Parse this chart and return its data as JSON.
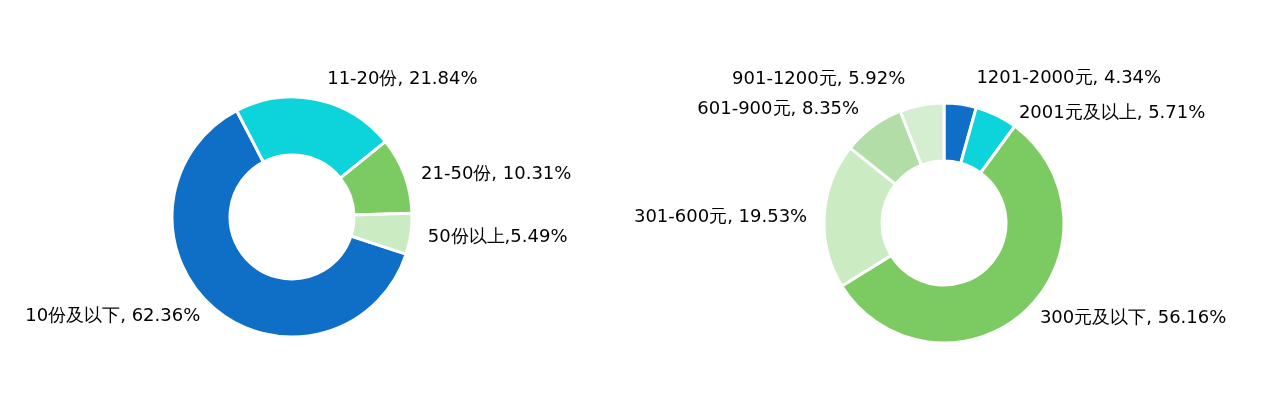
{
  "chart_data": [
    {
      "type": "donut",
      "categories": [
        "10份及以下",
        "11-20份",
        "21-50份",
        "50份以上"
      ],
      "values": [
        62.36,
        21.84,
        10.31,
        5.49
      ],
      "colors": [
        "#0f6fc6",
        "#0dd3db",
        "#7bcb62",
        "#cbebc3"
      ],
      "value_labels": [
        "62.36%",
        "21.84%",
        "10.31%",
        "5.49%"
      ]
    },
    {
      "type": "donut",
      "categories": [
        "1201-2000元",
        "2001元及以上",
        "300元及以下",
        "301-600元",
        "601-900元",
        "901-1200元"
      ],
      "values": [
        4.34,
        5.71,
        56.16,
        19.53,
        8.35,
        5.92
      ],
      "colors": [
        "#0f6fc6",
        "#0dd3db",
        "#7bcb62",
        "#cbebc3",
        "#b2dda6",
        "#d5edd0"
      ],
      "value_labels": [
        "4.34%",
        "5.71%",
        "56.16%",
        "19.53%",
        "8.35%",
        "5.92%"
      ]
    }
  ]
}
